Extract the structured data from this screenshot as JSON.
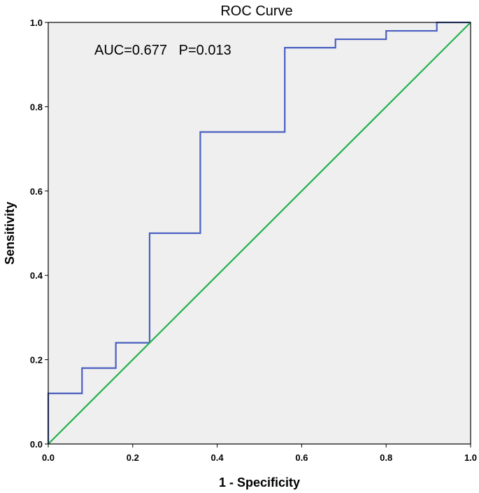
{
  "chart_data": {
    "type": "line",
    "title": "ROC Curve",
    "xlabel": "1 - Specificity",
    "ylabel": "Sensitivity",
    "xlim": [
      0,
      1
    ],
    "ylim": [
      0,
      1
    ],
    "x_ticks": [
      "0.0",
      "0.2",
      "0.4",
      "0.6",
      "0.8",
      "1.0"
    ],
    "y_ticks": [
      "0.0",
      "0.2",
      "0.4",
      "0.6",
      "0.8",
      "1.0"
    ],
    "grid": false,
    "annotation": "AUC=0.677   P=0.013",
    "series": [
      {
        "color": "#4a5fc1",
        "step": true,
        "x": [
          0.0,
          0.0,
          0.08,
          0.08,
          0.16,
          0.16,
          0.24,
          0.24,
          0.36,
          0.36,
          0.56,
          0.56,
          0.68,
          0.68,
          0.8,
          0.8,
          0.92,
          0.92,
          1.0
        ],
        "y": [
          0.0,
          0.12,
          0.12,
          0.18,
          0.18,
          0.24,
          0.24,
          0.5,
          0.5,
          0.74,
          0.74,
          0.94,
          0.94,
          0.96,
          0.96,
          0.98,
          0.98,
          1.0,
          1.0
        ]
      },
      {
        "color": "#22b14c",
        "step": false,
        "x": [
          0.0,
          1.0
        ],
        "y": [
          0.0,
          1.0
        ]
      }
    ],
    "colors": {
      "plot_bg": "#efefef",
      "frame": "#000000"
    }
  }
}
